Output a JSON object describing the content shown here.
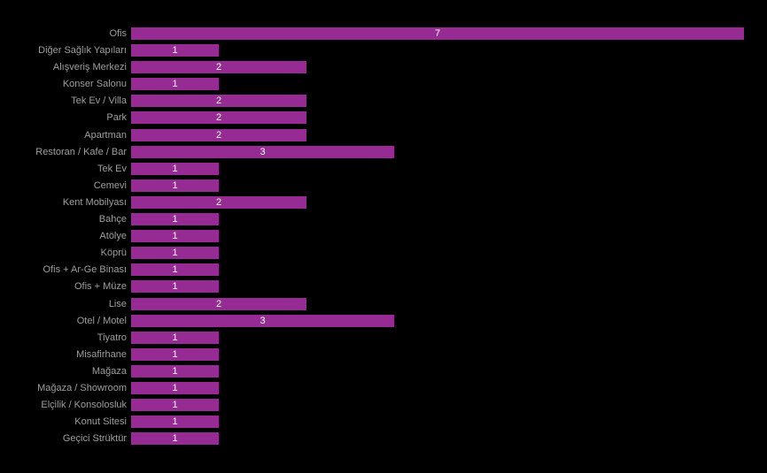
{
  "chart_data": {
    "type": "bar",
    "orientation": "horizontal",
    "title": "",
    "subtitle": "",
    "xlabel": "",
    "ylabel": "",
    "categories": [
      "Ofis",
      "Diğer Sağlık Yapıları",
      "Alışveriş Merkezi",
      "Konser Salonu",
      "Tek Ev / Villa",
      "Park",
      "Apartman",
      "Restoran / Kafe / Bar",
      "Tek Ev",
      "Cemevi",
      "Kent Mobilyası",
      "Bahçe",
      "Atölye",
      "Köprü",
      "Ofis + Ar-Ge Binası",
      "Ofis + Müze",
      "Lise",
      "Otel / Motel",
      "Tiyatro",
      "Misafirhane",
      "Mağaza",
      "Mağaza / Showroom",
      "Elçilik / Konsolosluk",
      "Konut Sitesi",
      "Geçici Strüktür"
    ],
    "values": [
      7,
      1,
      2,
      1,
      2,
      2,
      2,
      3,
      1,
      1,
      2,
      1,
      1,
      1,
      1,
      1,
      2,
      3,
      1,
      1,
      1,
      1,
      1,
      1,
      1
    ],
    "value_labels_shown": true,
    "xlim": [
      0,
      7
    ],
    "grid": false,
    "legend": false,
    "colors": {
      "background": "#000000",
      "bar": "#962B93",
      "category_label": "#9E9E9E",
      "value_label": "#FFFFFF"
    }
  }
}
